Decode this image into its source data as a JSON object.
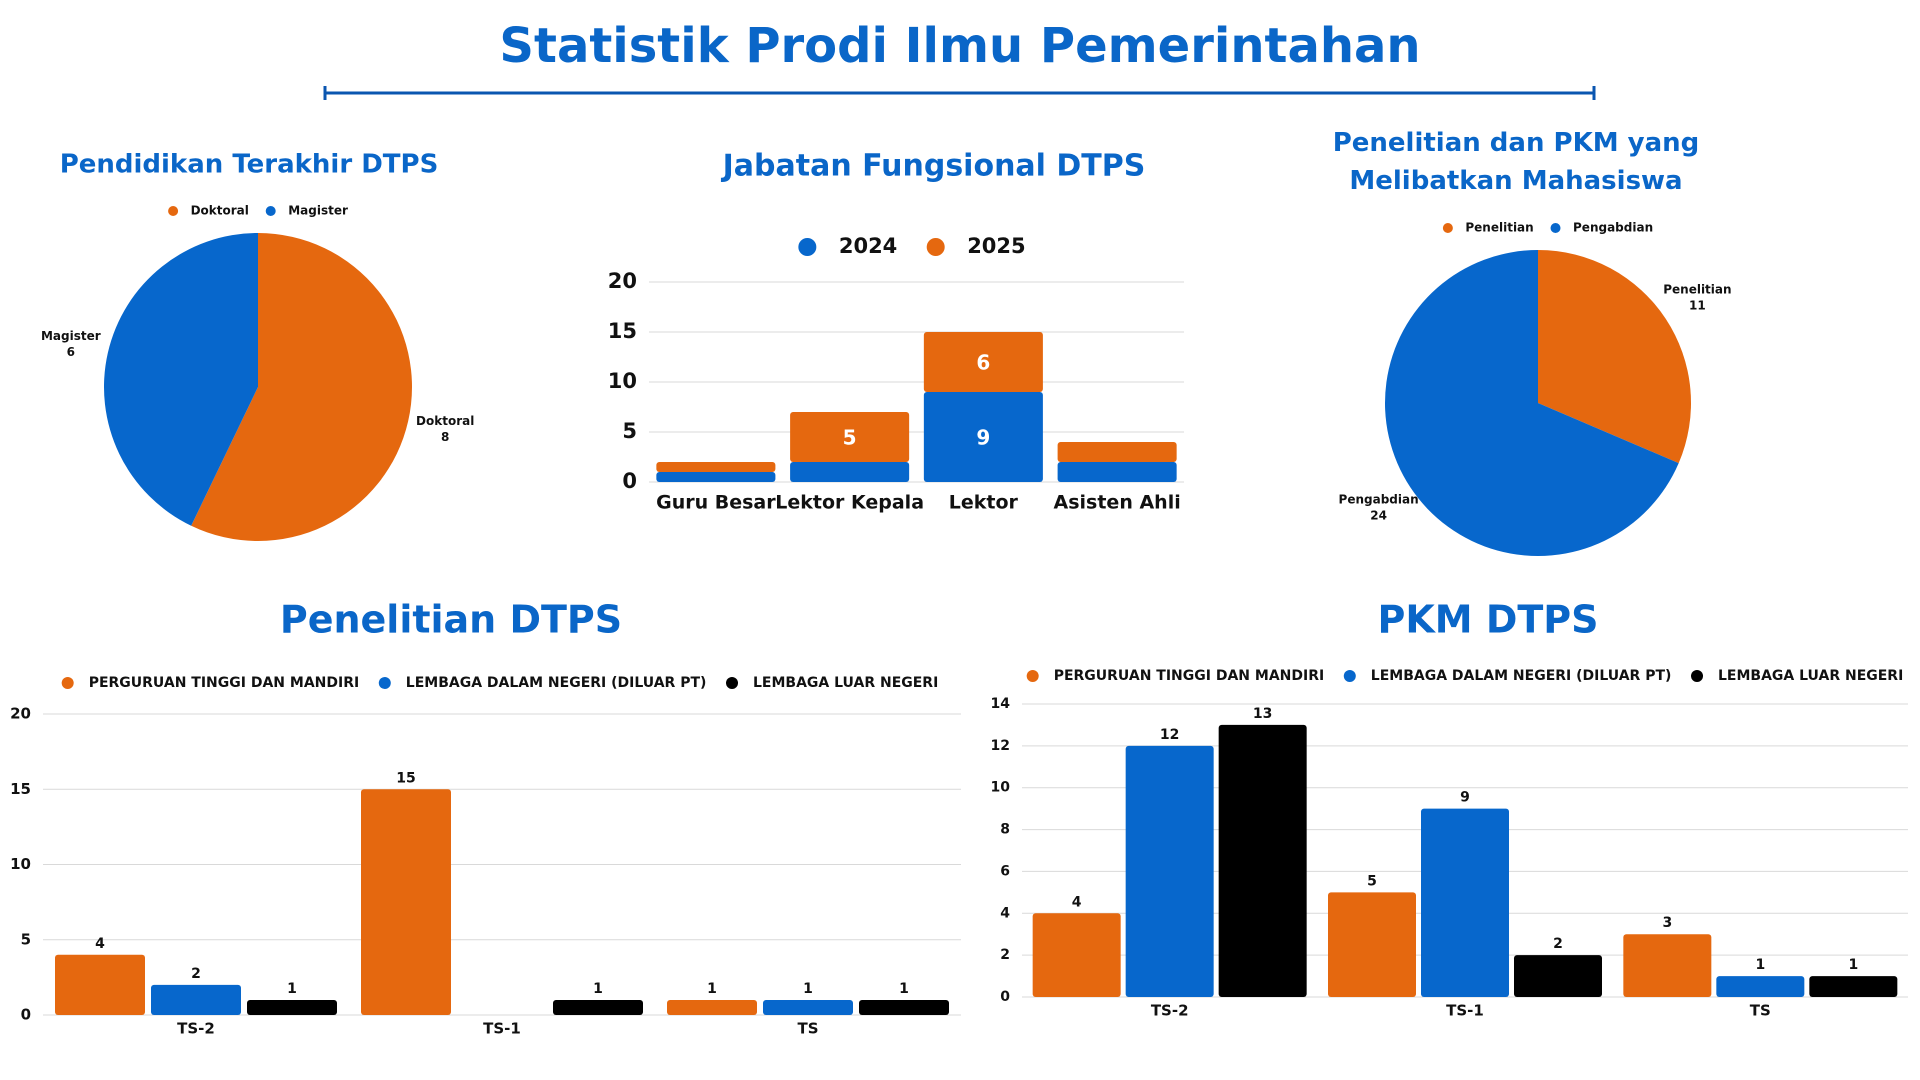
{
  "title": "Statistik Prodi Ilmu Pemerintahan",
  "chart_data": [
    {
      "type": "pie",
      "title": "Pendidikan Terakhir DTPS",
      "categories": [
        "Doktoral",
        "Magister"
      ],
      "values": [
        8,
        6
      ],
      "colors": [
        "#e5680f",
        "#0767cc"
      ]
    },
    {
      "type": "stacked_bar",
      "title": "Jabatan Fungsional DTPS",
      "categories": [
        "Guru Besar",
        "Lektor Kepala",
        "Lektor",
        "Asisten Ahli"
      ],
      "series": [
        {
          "name": "2024",
          "color": "#0767cc",
          "values": [
            1,
            2,
            9,
            2
          ]
        },
        {
          "name": "2025",
          "color": "#e5680f",
          "values": [
            1,
            5,
            6,
            2
          ]
        }
      ],
      "ylim": [
        0,
        20
      ],
      "yticks": [
        0,
        5,
        10,
        15,
        20
      ],
      "grid": true
    },
    {
      "type": "pie",
      "title": "Penelitian dan PKM yang Melibatkan Mahasiswa",
      "categories": [
        "Penelitian",
        "Pengabdian"
      ],
      "values": [
        11,
        24
      ],
      "colors": [
        "#e5680f",
        "#0767cc"
      ]
    },
    {
      "type": "grouped_bar",
      "title": "Penelitian DTPS",
      "categories": [
        "TS-2",
        "TS-1",
        "TS"
      ],
      "series": [
        {
          "name": "PERGURUAN TINGGI DAN MANDIRI",
          "color": "#e5680f",
          "values": [
            4,
            15,
            1
          ]
        },
        {
          "name": "LEMBAGA DALAM NEGERI (DILUAR PT)",
          "color": "#0767cc",
          "values": [
            2,
            null,
            1
          ]
        },
        {
          "name": "LEMBAGA LUAR NEGERI",
          "color": "#000000",
          "values": [
            1,
            1,
            1
          ]
        }
      ],
      "ylim": [
        0,
        20
      ],
      "yticks": [
        0,
        5,
        10,
        15,
        20
      ],
      "grid": true
    },
    {
      "type": "grouped_bar",
      "title": "PKM DTPS",
      "categories": [
        "TS-2",
        "TS-1",
        "TS"
      ],
      "series": [
        {
          "name": "PERGURUAN TINGGI DAN MANDIRI",
          "color": "#e5680f",
          "values": [
            4,
            5,
            3
          ]
        },
        {
          "name": "LEMBAGA DALAM NEGERI (DILUAR PT)",
          "color": "#0767cc",
          "values": [
            12,
            9,
            1
          ]
        },
        {
          "name": "LEMBAGA LUAR NEGERI",
          "color": "#000000",
          "values": [
            13,
            2,
            1
          ]
        }
      ],
      "ylim": [
        0,
        14
      ],
      "yticks": [
        0,
        2,
        4,
        6,
        8,
        10,
        12,
        14
      ],
      "grid": true
    }
  ]
}
